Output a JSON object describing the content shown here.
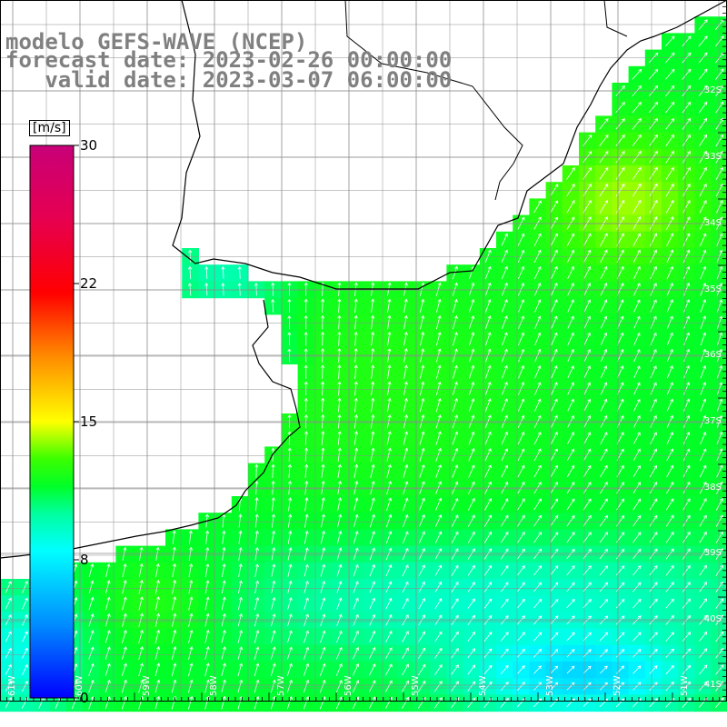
{
  "header": {
    "line1": "modelo GEFS-WAVE (NCEP)",
    "line2": "forecast date: 2023-02-26 00:00:00",
    "line3": "   valid date: 2023-03-07 06:00:00"
  },
  "colorbar": {
    "unit": "[m/s]",
    "ticks": [
      "30",
      "22",
      "15",
      "8",
      "0"
    ],
    "colors": [
      "#0000ff",
      "#00b4ff",
      "#00ffff",
      "#00ff40",
      "#40ff00",
      "#ffff00",
      "#ff8000",
      "#ff0000",
      "#c80070"
    ]
  },
  "grid": {
    "lat_labels": [
      "32S",
      "33S",
      "34S",
      "35S",
      "36S",
      "37S",
      "38S",
      "39S",
      "40S",
      "41S"
    ],
    "lon_labels": [
      "61W",
      "60W",
      "59W",
      "58W",
      "57W",
      "56W",
      "55W",
      "54W",
      "53W",
      "52W",
      "51W"
    ]
  },
  "colors": {
    "land": "#ffffff",
    "coastline": "#000000",
    "gridline": "#808080",
    "arrows": "#ffffff"
  },
  "field": {
    "variable": "wind speed",
    "vectors": "wind direction"
  }
}
